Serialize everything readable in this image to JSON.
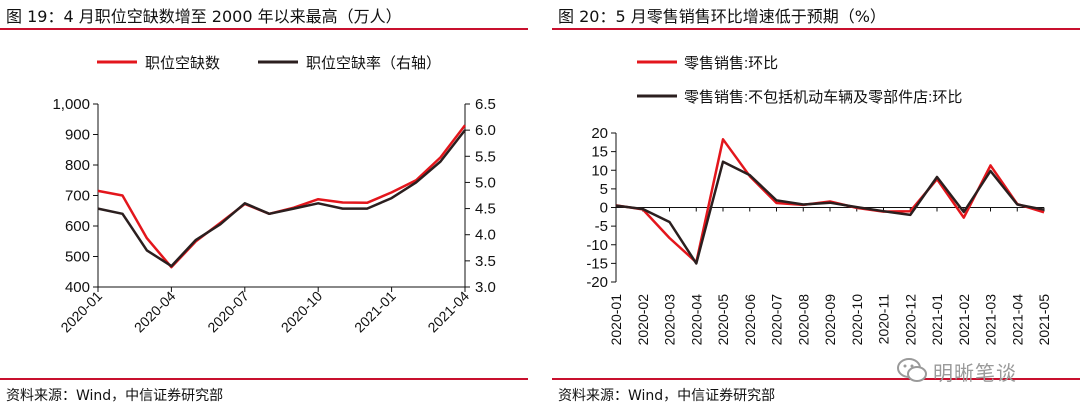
{
  "left": {
    "title": "图 19：4 月职位空缺数增至 2000 年以来最高（万人）",
    "source": "资料来源：Wind，中信证券研究部"
  },
  "right": {
    "title": "图 20：5 月零售销售环比增速低于预期（%）",
    "source": "资料来源：Wind，中信证券研究部"
  },
  "watermark": {
    "text": "明晰笔谈"
  },
  "colors": {
    "red": "#e3161c",
    "dark": "#2b1f1f",
    "rule": "#c8102e",
    "axis": "#111111"
  },
  "chart_data": [
    {
      "type": "line",
      "title": "图 19：4 月职位空缺数增至 2000 年以来最高（万人）",
      "legend": [
        {
          "name": "职位空缺数",
          "color": "#e3161c"
        },
        {
          "name": "职位空缺率（右轴）",
          "color": "#2b1f1f"
        }
      ],
      "x_ticks": [
        "2020-01",
        "2020-04",
        "2020-07",
        "2020-10",
        "2021-01",
        "2021-04"
      ],
      "y_left": {
        "ylim": [
          400,
          1000
        ],
        "ticks": [
          "400",
          "500",
          "600",
          "700",
          "800",
          "900",
          "1,000"
        ]
      },
      "y_right": {
        "ylim": [
          3.0,
          6.5
        ],
        "ticks": [
          "3.0",
          "3.5",
          "4.0",
          "4.5",
          "5.0",
          "5.5",
          "6.0",
          "6.5"
        ]
      },
      "series": [
        {
          "name": "职位空缺数",
          "axis": "left",
          "values": [
            715,
            700,
            560,
            465,
            550,
            610,
            672,
            640,
            660,
            688,
            677,
            676,
            710,
            750,
            825,
            930
          ]
        },
        {
          "name": "职位空缺率（右轴）",
          "axis": "right",
          "values": [
            4.5,
            4.4,
            3.7,
            3.4,
            3.9,
            4.2,
            4.6,
            4.4,
            4.5,
            4.6,
            4.5,
            4.5,
            4.7,
            5.0,
            5.4,
            6.0
          ]
        }
      ]
    },
    {
      "type": "line",
      "title": "图 20：5 月零售销售环比增速低于预期（%）",
      "legend": [
        {
          "name": "零售销售:环比",
          "color": "#e3161c"
        },
        {
          "name": "零售销售:不包括机动车辆及零部件店:环比",
          "color": "#2b1f1f"
        }
      ],
      "categories": [
        "2020-01",
        "2020-02",
        "2020-03",
        "2020-04",
        "2020-05",
        "2020-06",
        "2020-07",
        "2020-08",
        "2020-09",
        "2020-10",
        "2020-11",
        "2020-12",
        "2021-01",
        "2021-02",
        "2021-03",
        "2021-04",
        "2021-05"
      ],
      "y": {
        "ylim": [
          -20,
          20
        ],
        "ticks": [
          "-20",
          "-15",
          "-10",
          "-5",
          "0",
          "5",
          "10",
          "15",
          "20"
        ]
      },
      "series": [
        {
          "name": "零售销售:环比",
          "values": [
            0.6,
            -0.5,
            -8.2,
            -14.7,
            18.3,
            8.4,
            1.2,
            0.7,
            1.6,
            -0.1,
            -1.1,
            -1.0,
            7.6,
            -2.7,
            11.3,
            0.9,
            -1.3
          ]
        },
        {
          "name": "零售销售:不包括机动车辆及零部件店:环比",
          "values": [
            0.5,
            -0.4,
            -3.9,
            -15.0,
            12.3,
            8.7,
            1.9,
            0.8,
            1.3,
            0.1,
            -1.0,
            -2.0,
            8.2,
            -1.2,
            9.8,
            0.8,
            -0.6
          ]
        }
      ]
    }
  ]
}
